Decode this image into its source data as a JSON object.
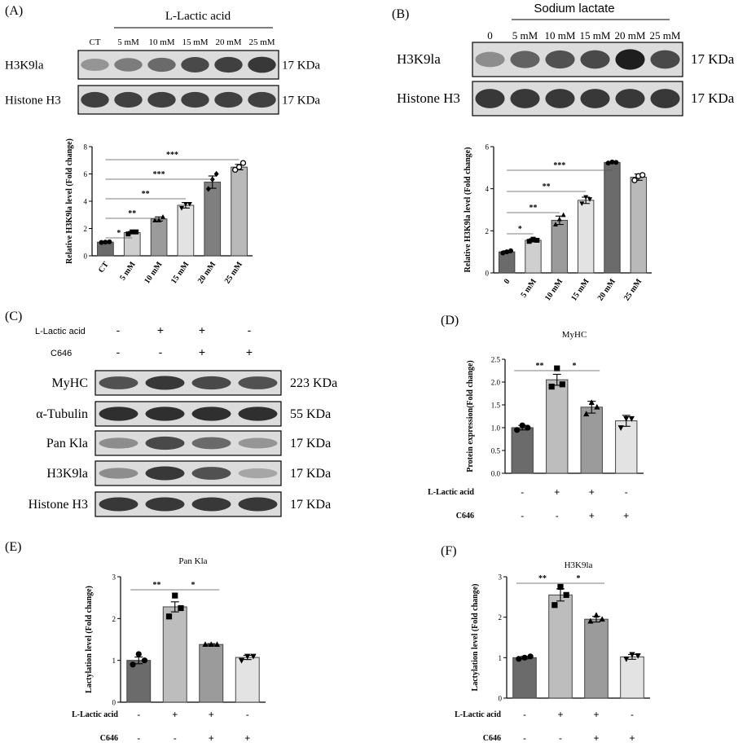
{
  "panels": {
    "A": {
      "label": "(A)",
      "treatment": "L-Lactic acid",
      "lanes": [
        "CT",
        "5 mM",
        "10 mM",
        "15 mM",
        "20 mM",
        "25 mM"
      ],
      "blots": [
        {
          "name": "H3K9la",
          "size": "17 KDa",
          "intensity": [
            0.3,
            0.45,
            0.55,
            0.75,
            0.8,
            0.85
          ]
        },
        {
          "name": "Histone H3",
          "size": "17 KDa",
          "intensity": [
            0.8,
            0.8,
            0.8,
            0.8,
            0.8,
            0.8
          ]
        }
      ]
    },
    "B": {
      "label": "(B)",
      "treatment": "Sodium lactate",
      "lanes": [
        "0",
        "5 mM",
        "10 mM",
        "15 mM",
        "20 mM",
        "25 mM"
      ],
      "blots": [
        {
          "name": "H3K9la",
          "size": "17 KDa",
          "intensity": [
            0.35,
            0.6,
            0.7,
            0.75,
            1.0,
            0.75
          ]
        },
        {
          "name": "Histone H3",
          "size": "17 KDa",
          "intensity": [
            0.85,
            0.85,
            0.85,
            0.85,
            0.85,
            0.85
          ]
        }
      ]
    },
    "C": {
      "label": "(C)",
      "rows": [
        {
          "name": "L-Lactic acid",
          "signs": [
            "-",
            "+",
            "+",
            "-"
          ]
        },
        {
          "name": "C646",
          "signs": [
            "-",
            "-",
            "+",
            "+"
          ]
        }
      ],
      "blots": [
        {
          "name": "MyHC",
          "size": "223 KDa",
          "intensity": [
            0.7,
            0.85,
            0.75,
            0.7
          ]
        },
        {
          "name": "α-Tubulin",
          "size": "55 KDa",
          "intensity": [
            0.9,
            0.9,
            0.9,
            0.9
          ]
        },
        {
          "name": "Pan Kla",
          "size": "17 KDa",
          "intensity": [
            0.35,
            0.75,
            0.55,
            0.3
          ]
        },
        {
          "name": "H3K9la",
          "size": "17 KDa",
          "intensity": [
            0.35,
            0.85,
            0.7,
            0.2
          ]
        },
        {
          "name": "Histone H3",
          "size": "17 KDa",
          "intensity": [
            0.85,
            0.85,
            0.85,
            0.85
          ]
        }
      ]
    },
    "D": {
      "label": "(D)"
    },
    "E": {
      "label": "(E)"
    },
    "F": {
      "label": "(F)"
    }
  },
  "chart_data": [
    {
      "panel": "A",
      "type": "bar",
      "title": "",
      "ylabel": "Relative H3K9la  level (Fold change)",
      "categories": [
        "CT",
        "5 mM",
        "10 mM",
        "15 mM",
        "20 mM",
        "25 mM"
      ],
      "values": [
        1.0,
        1.7,
        2.7,
        3.7,
        5.4,
        6.5
      ],
      "errors": [
        0.05,
        0.08,
        0.15,
        0.2,
        0.45,
        0.2
      ],
      "points": [
        [
          0.98,
          1.0,
          1.02
        ],
        [
          1.6,
          1.75,
          1.75
        ],
        [
          2.6,
          2.6,
          2.85
        ],
        [
          3.5,
          3.8,
          3.8
        ],
        [
          4.9,
          5.6,
          6.0
        ],
        [
          6.3,
          6.5,
          6.8
        ]
      ],
      "markers": [
        "circle",
        "square",
        "triangle",
        "triangle-down",
        "diamond",
        "circle-open"
      ],
      "bar_colors": [
        "#6b6b6b",
        "#cfcfcf",
        "#9b9b9b",
        "#e3e3e3",
        "#7f7f7f",
        "#b9b9b9"
      ],
      "ylim": [
        0,
        8
      ],
      "yticks": [
        0,
        2,
        4,
        6,
        8
      ],
      "significance": [
        {
          "from": 0,
          "to": 1,
          "label": "*"
        },
        {
          "from": 0,
          "to": 2,
          "label": "**"
        },
        {
          "from": 0,
          "to": 3,
          "label": "**"
        },
        {
          "from": 0,
          "to": 4,
          "label": "***"
        },
        {
          "from": 0,
          "to": 5,
          "label": "***"
        }
      ],
      "rotate_x": true
    },
    {
      "panel": "B",
      "type": "bar",
      "title": "",
      "ylabel": "Relative H3K9la  level (Fold change)",
      "categories": [
        "0",
        "5 mM",
        "10 mM",
        "15 mM",
        "20 mM",
        "25 mM"
      ],
      "values": [
        1.0,
        1.55,
        2.5,
        3.45,
        5.25,
        4.55
      ],
      "errors": [
        0.05,
        0.08,
        0.2,
        0.15,
        0.03,
        0.15
      ],
      "points": [
        [
          0.95,
          1.0,
          1.05
        ],
        [
          1.5,
          1.6,
          1.55
        ],
        [
          2.3,
          2.55,
          2.75
        ],
        [
          3.3,
          3.6,
          3.5
        ],
        [
          5.22,
          5.27,
          5.25
        ],
        [
          4.4,
          4.6,
          4.65
        ]
      ],
      "markers": [
        "circle",
        "square",
        "triangle",
        "triangle-down",
        "circle",
        "circle-open"
      ],
      "bar_colors": [
        "#6b6b6b",
        "#cfcfcf",
        "#9b9b9b",
        "#e3e3e3",
        "#6b6b6b",
        "#b9b9b9"
      ],
      "ylim": [
        0,
        6
      ],
      "yticks": [
        0,
        2,
        4,
        6
      ],
      "significance": [
        {
          "from": 0,
          "to": 1,
          "label": "*"
        },
        {
          "from": 0,
          "to": 2,
          "label": "**"
        },
        {
          "from": 0,
          "to": 3,
          "label": "**"
        },
        {
          "from": 0,
          "to": 4,
          "label": "***"
        }
      ],
      "rotate_x": true
    },
    {
      "panel": "D",
      "type": "bar",
      "title": "MyHC",
      "ylabel": "Protein expression(Fold change)",
      "categories": [
        "",
        "",
        "",
        ""
      ],
      "values": [
        1.0,
        2.05,
        1.45,
        1.15
      ],
      "errors": [
        0.05,
        0.12,
        0.13,
        0.12
      ],
      "points": [
        [
          0.95,
          1.05,
          1.0
        ],
        [
          1.9,
          2.3,
          1.95
        ],
        [
          1.3,
          1.55,
          1.45
        ],
        [
          1.0,
          1.2,
          1.2
        ]
      ],
      "markers": [
        "circle",
        "square",
        "triangle",
        "triangle-down"
      ],
      "bar_colors": [
        "#6b6b6b",
        "#bdbdbd",
        "#9b9b9b",
        "#e3e3e3"
      ],
      "ylim": [
        0,
        2.5
      ],
      "yticks": [
        0.0,
        0.5,
        1.0,
        1.5,
        2.0,
        2.5
      ],
      "tick_decimals": 1,
      "significance": [
        {
          "from": 0,
          "to": 1,
          "label": "**"
        },
        {
          "from": 1,
          "to": 2,
          "label": "*"
        }
      ],
      "conditions": [
        {
          "name": "L-Lactic acid",
          "signs": [
            "-",
            "+",
            "+",
            "-"
          ]
        },
        {
          "name": "C646",
          "signs": [
            "-",
            "-",
            "+",
            "+"
          ]
        }
      ]
    },
    {
      "panel": "E",
      "type": "bar",
      "title": "Pan Kla",
      "ylabel": "Lactylation level (Fold change)",
      "categories": [
        "",
        "",
        "",
        ""
      ],
      "values": [
        1.0,
        2.28,
        1.38,
        1.07
      ],
      "errors": [
        0.08,
        0.12,
        0.02,
        0.05
      ],
      "points": [
        [
          0.9,
          1.15,
          1.0
        ],
        [
          2.05,
          2.55,
          2.25
        ],
        [
          1.38,
          1.38,
          1.38
        ],
        [
          1.0,
          1.1,
          1.1
        ]
      ],
      "markers": [
        "circle",
        "square",
        "triangle",
        "triangle-down"
      ],
      "bar_colors": [
        "#6b6b6b",
        "#bdbdbd",
        "#9b9b9b",
        "#e3e3e3"
      ],
      "ylim": [
        0,
        3
      ],
      "yticks": [
        0,
        1,
        2,
        3
      ],
      "significance": [
        {
          "from": 0,
          "to": 1,
          "label": "**"
        },
        {
          "from": 1,
          "to": 2,
          "label": "*"
        }
      ],
      "conditions": [
        {
          "name": "L-Lactic acid",
          "signs": [
            "-",
            "+",
            "+",
            "-"
          ]
        },
        {
          "name": "C646",
          "signs": [
            "-",
            "-",
            "+",
            "+"
          ]
        }
      ]
    },
    {
      "panel": "F",
      "type": "bar",
      "title": "H3K9la",
      "ylabel": "Lactylation level (Fold change)",
      "categories": [
        "",
        "",
        "",
        ""
      ],
      "values": [
        1.0,
        2.55,
        1.95,
        1.02
      ],
      "errors": [
        0.03,
        0.15,
        0.07,
        0.06
      ],
      "points": [
        [
          0.97,
          1.0,
          1.03
        ],
        [
          2.3,
          2.75,
          2.55
        ],
        [
          1.9,
          2.05,
          1.95
        ],
        [
          0.97,
          1.08,
          1.05
        ]
      ],
      "markers": [
        "circle",
        "square",
        "triangle",
        "triangle-down"
      ],
      "bar_colors": [
        "#6b6b6b",
        "#bdbdbd",
        "#9b9b9b",
        "#e3e3e3"
      ],
      "ylim": [
        0,
        3
      ],
      "yticks": [
        0,
        1,
        2,
        3
      ],
      "significance": [
        {
          "from": 0,
          "to": 1,
          "label": "**"
        },
        {
          "from": 1,
          "to": 2,
          "label": "*"
        }
      ],
      "conditions": [
        {
          "name": "L-Lactic acid",
          "signs": [
            "-",
            "+",
            "+",
            "-"
          ]
        },
        {
          "name": "C646",
          "signs": [
            "-",
            "-",
            "+",
            "+"
          ]
        }
      ]
    }
  ]
}
